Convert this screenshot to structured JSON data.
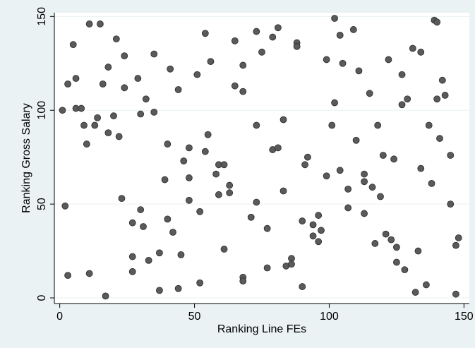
{
  "chart_data": {
    "type": "scatter",
    "title": "",
    "xlabel": "Ranking Line FEs",
    "ylabel": "Ranking Gross Salary",
    "xlim": [
      -2,
      152
    ],
    "ylim": [
      -3,
      152
    ],
    "xticks": [
      0,
      50,
      100,
      150
    ],
    "yticks": [
      0,
      50,
      100,
      150
    ],
    "xtick_labels": [
      "0",
      "50",
      "100",
      "150"
    ],
    "ytick_labels": [
      "0",
      "50",
      "100",
      "150"
    ],
    "grid": true,
    "legend": "none",
    "colors": {
      "background": "#eaf2f3",
      "plot_area": "#ffffff",
      "marker": "#5a5a5a"
    },
    "points": [
      [
        1,
        100
      ],
      [
        2,
        49
      ],
      [
        3,
        12
      ],
      [
        3,
        114
      ],
      [
        5,
        135
      ],
      [
        6,
        117
      ],
      [
        6,
        101
      ],
      [
        8,
        101
      ],
      [
        9,
        92
      ],
      [
        10,
        82
      ],
      [
        11,
        146
      ],
      [
        11,
        13
      ],
      [
        13,
        92
      ],
      [
        14,
        96
      ],
      [
        15,
        146
      ],
      [
        16,
        114
      ],
      [
        17,
        1
      ],
      [
        18,
        123
      ],
      [
        18,
        88
      ],
      [
        20,
        97
      ],
      [
        21,
        138
      ],
      [
        22,
        86
      ],
      [
        23,
        53
      ],
      [
        24,
        129
      ],
      [
        24,
        112
      ],
      [
        27,
        40
      ],
      [
        27,
        22
      ],
      [
        27,
        14
      ],
      [
        29,
        117
      ],
      [
        30,
        98
      ],
      [
        30,
        47
      ],
      [
        31,
        38
      ],
      [
        32,
        106
      ],
      [
        33,
        20
      ],
      [
        35,
        99
      ],
      [
        35,
        130
      ],
      [
        37,
        24
      ],
      [
        37,
        4
      ],
      [
        39,
        63
      ],
      [
        40,
        42
      ],
      [
        40,
        82
      ],
      [
        41,
        122
      ],
      [
        42,
        35
      ],
      [
        44,
        111
      ],
      [
        44,
        5
      ],
      [
        45,
        23
      ],
      [
        46,
        73
      ],
      [
        48,
        80
      ],
      [
        48,
        64
      ],
      [
        48,
        52
      ],
      [
        51,
        119
      ],
      [
        52,
        46
      ],
      [
        52,
        8
      ],
      [
        54,
        141
      ],
      [
        54,
        78
      ],
      [
        55,
        87
      ],
      [
        56,
        126
      ],
      [
        58,
        66
      ],
      [
        59,
        71
      ],
      [
        59,
        55
      ],
      [
        61,
        71
      ],
      [
        61,
        26
      ],
      [
        63,
        60
      ],
      [
        63,
        56
      ],
      [
        65,
        137
      ],
      [
        65,
        113
      ],
      [
        68,
        124
      ],
      [
        68,
        110
      ],
      [
        68,
        11
      ],
      [
        68,
        9
      ],
      [
        71,
        43
      ],
      [
        73,
        142
      ],
      [
        73,
        92
      ],
      [
        73,
        51
      ],
      [
        75,
        131
      ],
      [
        77,
        37
      ],
      [
        77,
        16
      ],
      [
        79,
        139
      ],
      [
        79,
        79
      ],
      [
        81,
        80
      ],
      [
        81,
        144
      ],
      [
        83,
        95
      ],
      [
        83,
        57
      ],
      [
        84,
        17
      ],
      [
        86,
        21
      ],
      [
        86,
        18
      ],
      [
        88,
        136
      ],
      [
        88,
        134
      ],
      [
        90,
        41
      ],
      [
        90,
        6
      ],
      [
        91,
        71
      ],
      [
        92,
        75
      ],
      [
        94,
        39
      ],
      [
        94,
        33
      ],
      [
        96,
        44
      ],
      [
        96,
        30
      ],
      [
        97,
        36
      ],
      [
        99,
        127
      ],
      [
        99,
        65
      ],
      [
        101,
        92
      ],
      [
        102,
        149
      ],
      [
        102,
        104
      ],
      [
        104,
        68
      ],
      [
        104,
        140
      ],
      [
        105,
        125
      ],
      [
        107,
        58
      ],
      [
        107,
        48
      ],
      [
        109,
        143
      ],
      [
        110,
        84
      ],
      [
        111,
        121
      ],
      [
        113,
        66
      ],
      [
        113,
        62
      ],
      [
        113,
        45
      ],
      [
        115,
        109
      ],
      [
        116,
        59
      ],
      [
        117,
        29
      ],
      [
        118,
        92
      ],
      [
        119,
        54
      ],
      [
        120,
        76
      ],
      [
        121,
        34
      ],
      [
        122,
        127
      ],
      [
        123,
        31
      ],
      [
        124,
        74
      ],
      [
        125,
        27
      ],
      [
        125,
        19
      ],
      [
        127,
        119
      ],
      [
        127,
        103
      ],
      [
        128,
        15
      ],
      [
        129,
        106
      ],
      [
        131,
        133
      ],
      [
        132,
        3
      ],
      [
        133,
        25
      ],
      [
        134,
        131
      ],
      [
        134,
        69
      ],
      [
        136,
        7
      ],
      [
        137,
        92
      ],
      [
        138,
        61
      ],
      [
        139,
        148
      ],
      [
        140,
        147
      ],
      [
        140,
        106
      ],
      [
        141,
        85
      ],
      [
        142,
        116
      ],
      [
        143,
        108
      ],
      [
        145,
        76
      ],
      [
        145,
        50
      ],
      [
        147,
        2
      ],
      [
        147,
        28
      ],
      [
        148,
        32
      ]
    ]
  }
}
